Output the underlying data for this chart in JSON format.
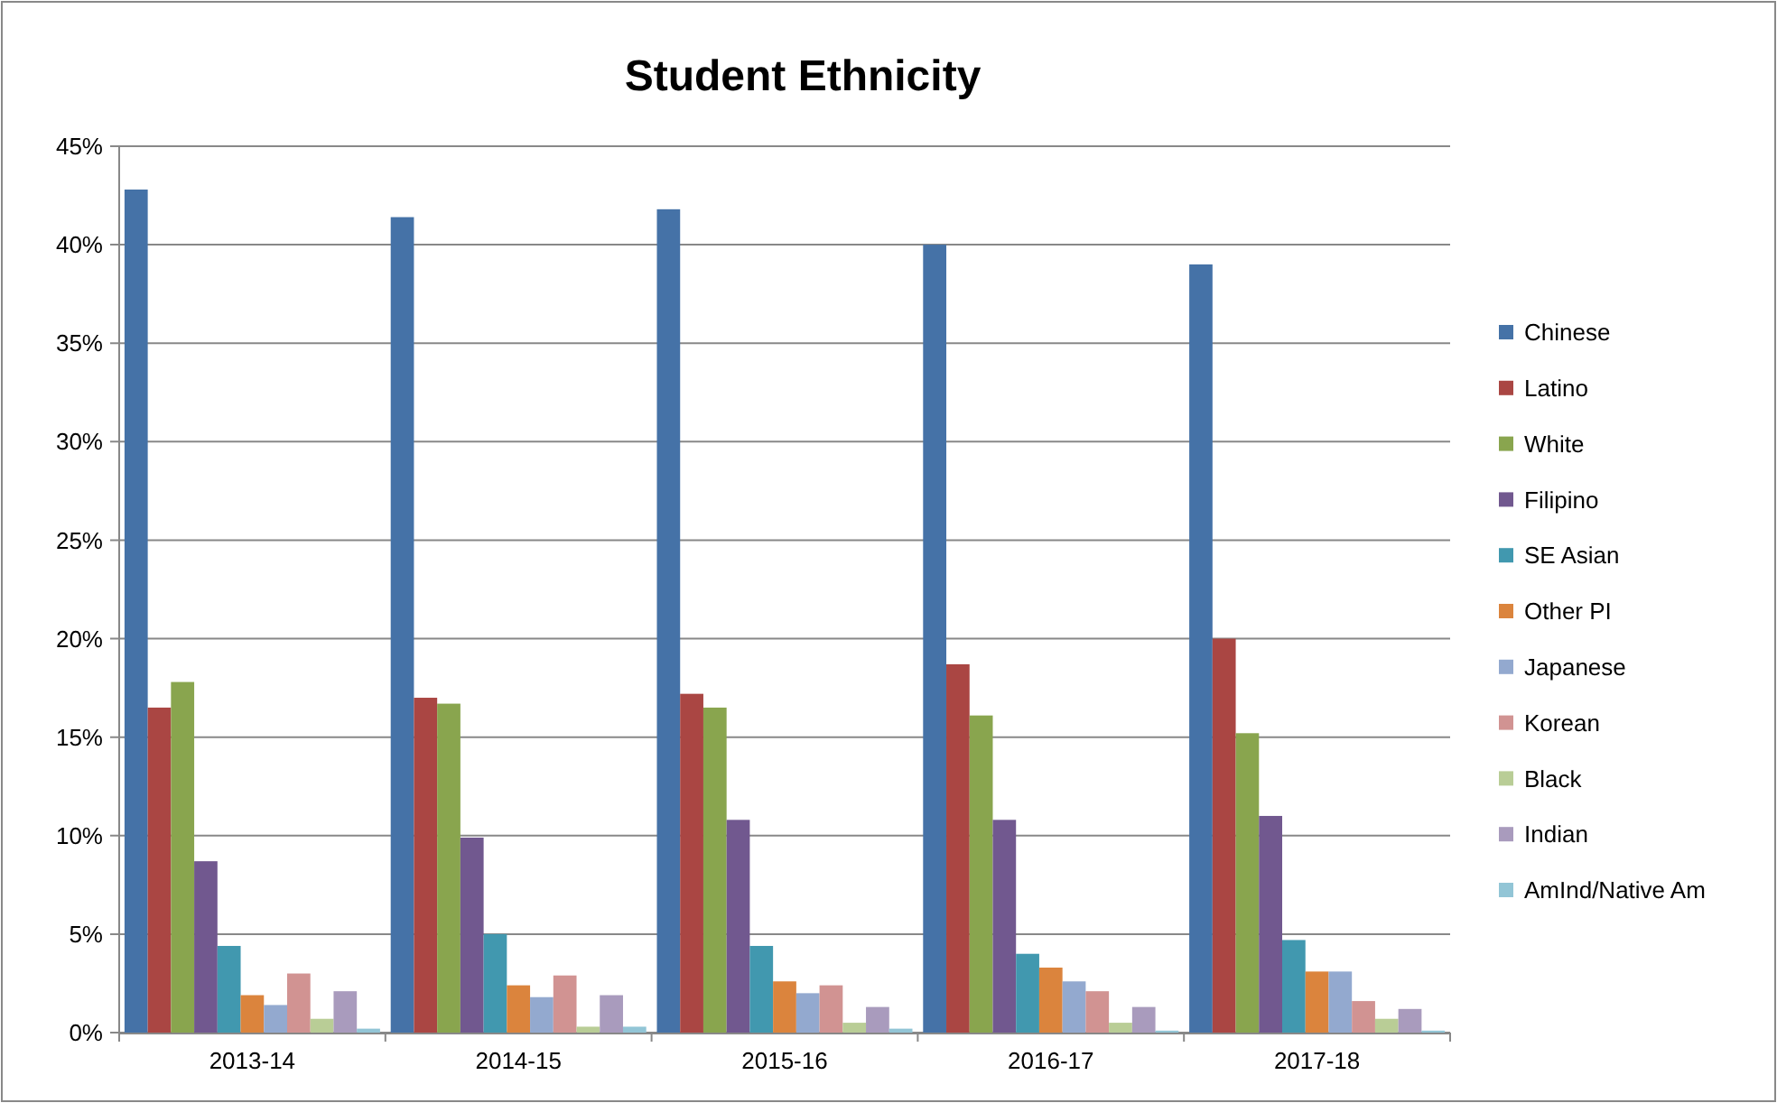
{
  "chart_data": {
    "type": "bar",
    "title": "Student Ethnicity",
    "categories": [
      "2013-14",
      "2014-15",
      "2015-16",
      "2016-17",
      "2017-18"
    ],
    "series": [
      {
        "name": "Chinese",
        "color": "#4572a7",
        "values": [
          42.8,
          41.4,
          41.8,
          40.0,
          39.0
        ]
      },
      {
        "name": "Latino",
        "color": "#aa4643",
        "values": [
          16.5,
          17.0,
          17.2,
          18.7,
          20.0
        ]
      },
      {
        "name": "White",
        "color": "#89a54e",
        "values": [
          17.8,
          16.7,
          16.5,
          16.1,
          15.2
        ]
      },
      {
        "name": "Filipino",
        "color": "#71588f",
        "values": [
          8.7,
          9.9,
          10.8,
          10.8,
          11.0
        ]
      },
      {
        "name": "SE Asian",
        "color": "#4198af",
        "values": [
          4.4,
          5.0,
          4.4,
          4.0,
          4.7
        ]
      },
      {
        "name": "Other PI",
        "color": "#db843d",
        "values": [
          1.9,
          2.4,
          2.6,
          3.3,
          3.1
        ]
      },
      {
        "name": "Japanese",
        "color": "#93a9cf",
        "values": [
          1.4,
          1.8,
          2.0,
          2.6,
          3.1
        ]
      },
      {
        "name": "Korean",
        "color": "#d19392",
        "values": [
          3.0,
          2.9,
          2.4,
          2.1,
          1.6
        ]
      },
      {
        "name": "Black",
        "color": "#b9cd96",
        "values": [
          0.7,
          0.3,
          0.5,
          0.5,
          0.7
        ]
      },
      {
        "name": "Indian",
        "color": "#a99bbd",
        "values": [
          2.1,
          1.9,
          1.3,
          1.3,
          1.2
        ]
      },
      {
        "name": "AmInd/Native Am",
        "color": "#92c5d6",
        "values": [
          0.2,
          0.3,
          0.2,
          0.1,
          0.1
        ]
      }
    ],
    "ylim": [
      0,
      45
    ],
    "yticks": [
      {
        "value": 0,
        "label": "0%"
      },
      {
        "value": 5,
        "label": "5%"
      },
      {
        "value": 10,
        "label": "10%"
      },
      {
        "value": 15,
        "label": "15%"
      },
      {
        "value": 20,
        "label": "20%"
      },
      {
        "value": 25,
        "label": "25%"
      },
      {
        "value": 30,
        "label": "30%"
      },
      {
        "value": 35,
        "label": "35%"
      },
      {
        "value": 40,
        "label": "40%"
      },
      {
        "value": 45,
        "label": "45%"
      }
    ],
    "grid": "y",
    "legend": "right"
  }
}
